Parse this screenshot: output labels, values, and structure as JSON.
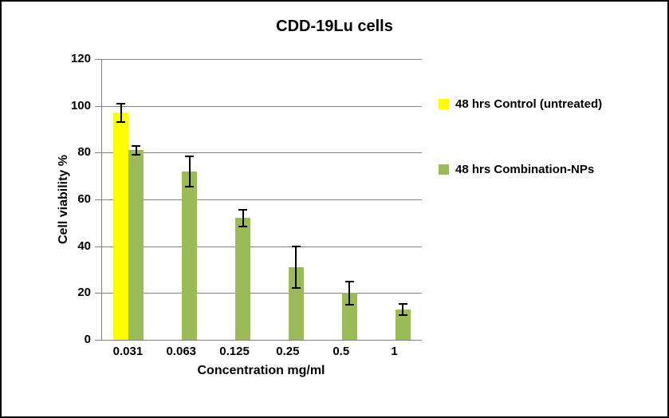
{
  "chart_data": {
    "type": "bar",
    "title": "CDD-19Lu cells",
    "xlabel": "Concentration mg/ml",
    "ylabel": "Cell viability %",
    "categories": [
      "0.031",
      "0.063",
      "0.125",
      "0.25",
      "0.5",
      "1"
    ],
    "ylim": [
      0,
      120
    ],
    "ytick_step": 20,
    "grid": true,
    "legend_position": "right",
    "series": [
      {
        "name": "48 hrs Control (untreated)",
        "color": "#FFFF00",
        "values": [
          97,
          null,
          null,
          null,
          null,
          null
        ],
        "error_bars": [
          4,
          null,
          null,
          null,
          null,
          null
        ]
      },
      {
        "name": "48 hrs Combination-NPs",
        "color": "#9BBB59",
        "values": [
          81,
          72,
          52,
          31,
          20,
          13
        ],
        "error_bars": [
          2,
          6.5,
          3.5,
          9,
          5,
          2.5
        ]
      }
    ]
  },
  "colors": {
    "grid": "#808080",
    "axis": "#808080",
    "error_bar": "#000000",
    "background": "#FFFFFF",
    "frame_border": "#000000",
    "text": "#000000"
  }
}
